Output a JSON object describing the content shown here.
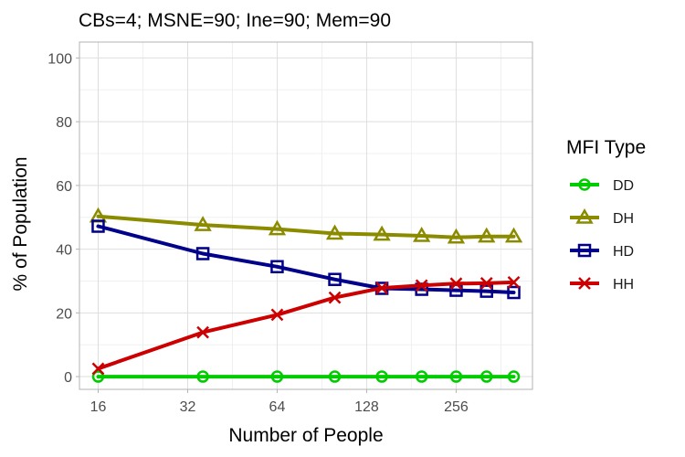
{
  "chart_data": {
    "type": "line",
    "title": "CBs=4; MSNE=90; Ine=90; Mem=90",
    "xlabel": "Number of People",
    "ylabel": "% of Population",
    "xscale": "log2",
    "xlim": [
      16,
      400
    ],
    "ylim": [
      -4,
      105
    ],
    "x_ticks": [
      16,
      32,
      64,
      128,
      256
    ],
    "x_tick_labels": [
      "16",
      "32",
      "64",
      "128",
      "256"
    ],
    "y_ticks": [
      0,
      20,
      40,
      60,
      80,
      100
    ],
    "y_tick_labels": [
      "0",
      "20",
      "40",
      "60",
      "80",
      "100"
    ],
    "grid": true,
    "x": [
      16,
      36,
      64,
      100,
      144,
      196,
      256,
      324,
      400
    ],
    "legend": {
      "title": "MFI Type",
      "position": "right"
    },
    "series": [
      {
        "name": "DD",
        "color": "#00cc00",
        "marker": "circle",
        "values": [
          0,
          0,
          0,
          0,
          0,
          0,
          0,
          0,
          0
        ]
      },
      {
        "name": "DH",
        "color": "#8b8b00",
        "marker": "triangle",
        "values": [
          50.3,
          47.6,
          46.3,
          44.9,
          44.6,
          44.2,
          43.7,
          44.0,
          44.0
        ]
      },
      {
        "name": "HD",
        "color": "#00008b",
        "marker": "square",
        "values": [
          47.2,
          38.6,
          34.5,
          30.5,
          27.7,
          27.4,
          27.1,
          26.8,
          26.4
        ]
      },
      {
        "name": "HH",
        "color": "#cc0000",
        "marker": "cross",
        "values": [
          2.5,
          13.9,
          19.4,
          24.8,
          27.8,
          28.6,
          29.2,
          29.3,
          29.6
        ]
      }
    ]
  }
}
